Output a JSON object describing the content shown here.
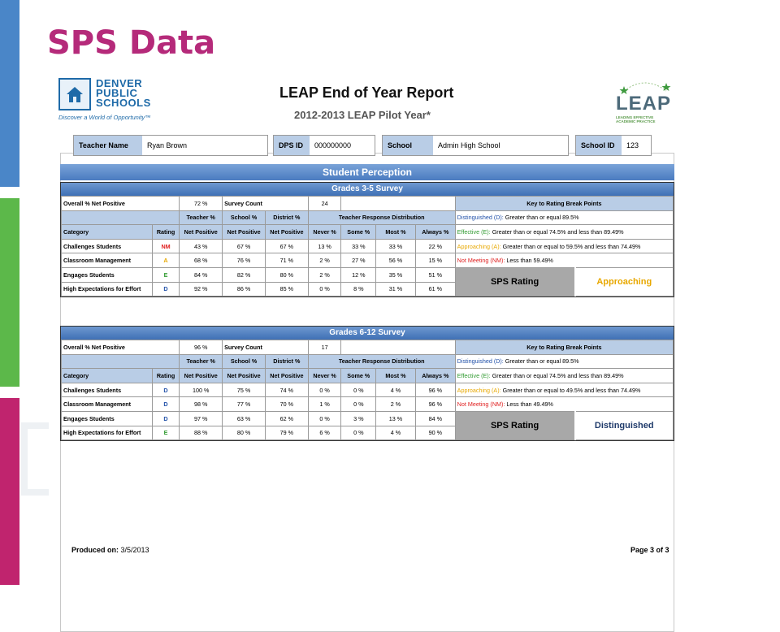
{
  "slide": {
    "title": "SPS Data"
  },
  "report": {
    "dps_logo": {
      "line1": "DENVER",
      "line2": "PUBLIC",
      "line3": "SCHOOLS",
      "tagline": "Discover a World of Opportunity™"
    },
    "title": "LEAP End of Year Report",
    "subtitle": "2012-2013 LEAP Pilot Year*",
    "leap_logo": {
      "word": "LEAP",
      "tagline1": "LEADING EFFECTIVE",
      "tagline2": "ACADEMIC PRACTICE"
    },
    "info": {
      "teacher_name_label": "Teacher Name",
      "teacher_name": "Ryan Brown",
      "dps_id_label": "DPS ID",
      "dps_id": "000000000",
      "school_label": "School",
      "school": "Admin High School",
      "school_id_label": "School ID",
      "school_id": "123"
    },
    "section_title": "Student Perception",
    "headers": {
      "overall": "Overall % Net Positive",
      "survey_count": "Survey Count",
      "key_title": "Key to Rating Break Points",
      "teacher_pct": "Teacher %",
      "school_pct": "School %",
      "district_pct": "District %",
      "distribution": "Teacher Response Distribution",
      "category": "Category",
      "rating": "Rating",
      "net_positive": "Net Positive",
      "never": "Never %",
      "some": "Some %",
      "most": "Most %",
      "always": "Always %",
      "sps_rating": "SPS Rating"
    },
    "surveys": [
      {
        "title": "Grades 3-5 Survey",
        "overall": "72 %",
        "survey_count": "24",
        "rows": [
          {
            "category": "Challenges Students",
            "rating": "NM",
            "teacher": "43 %",
            "school": "67 %",
            "district": "67 %",
            "never": "13 %",
            "some": "33 %",
            "most": "33 %",
            "always": "22 %"
          },
          {
            "category": "Classroom Management",
            "rating": "A",
            "teacher": "68 %",
            "school": "76 %",
            "district": "71 %",
            "never": "2 %",
            "some": "27 %",
            "most": "56 %",
            "always": "15 %"
          },
          {
            "category": "Engages Students",
            "rating": "E",
            "teacher": "84 %",
            "school": "82 %",
            "district": "80 %",
            "never": "2 %",
            "some": "12 %",
            "most": "35 %",
            "always": "51 %"
          },
          {
            "category": "High Expectations for Effort",
            "rating": "D",
            "teacher": "92 %",
            "school": "86 %",
            "district": "85 %",
            "never": "0 %",
            "some": "8 %",
            "most": "31 %",
            "always": "61 %"
          }
        ],
        "key": {
          "d_label": "Distinguished (D):",
          "d_text": "Greater than or equal 89.5%",
          "e_label": "Effective (E):",
          "e_text": "Greater than or equal 74.5% and less than 89.49%",
          "a_label": "Approaching (A):",
          "a_text": "Greater than or equal to 59.5% and less than 74.49%",
          "nm_label": "Not Meeting (NM):",
          "nm_text": "Less than 59.49%"
        },
        "sps_value": "Approaching",
        "sps_color": "#e8a800"
      },
      {
        "title": "Grades 6-12 Survey",
        "overall": "96 %",
        "survey_count": "17",
        "rows": [
          {
            "category": "Challenges Students",
            "rating": "D",
            "teacher": "100 %",
            "school": "75 %",
            "district": "74 %",
            "never": "0 %",
            "some": "0 %",
            "most": "4 %",
            "always": "96 %"
          },
          {
            "category": "Classroom Management",
            "rating": "D",
            "teacher": "98 %",
            "school": "77 %",
            "district": "70 %",
            "never": "1 %",
            "some": "0 %",
            "most": "2 %",
            "always": "96 %"
          },
          {
            "category": "Engages Students",
            "rating": "D",
            "teacher": "97 %",
            "school": "63 %",
            "district": "62 %",
            "never": "0 %",
            "some": "3 %",
            "most": "13 %",
            "always": "84 %"
          },
          {
            "category": "High Expectations for Effort",
            "rating": "E",
            "teacher": "88 %",
            "school": "80 %",
            "district": "79 %",
            "never": "6 %",
            "some": "0 %",
            "most": "4 %",
            "always": "90 %"
          }
        ],
        "key": {
          "d_label": "Distinguished (D):",
          "d_text": "Greater than or equal 89.5%",
          "e_label": "Effective (E):",
          "e_text": "Greater than or equal 74.5% and less than 89.49%",
          "a_label": "Approaching (A):",
          "a_text": "Greater than or equal to 49.5% and less than 74.49%",
          "nm_label": "Not Meeting (NM):",
          "nm_text": "Less than 49.49%"
        },
        "sps_value": "Distinguished",
        "sps_color": "#1f3a6a"
      }
    ],
    "footer": {
      "produced_label": "Produced on:",
      "produced_date": "3/5/2013",
      "page": "Page 3 of 3"
    }
  }
}
